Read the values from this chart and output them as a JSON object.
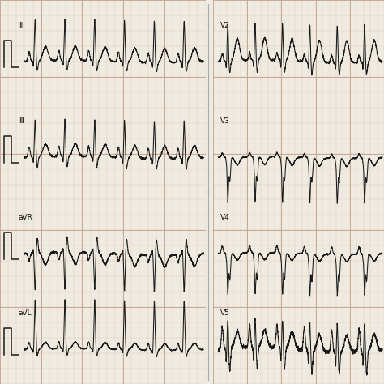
{
  "bg_color": "#f0ebe0",
  "grid_minor_color": "#d8c8b8",
  "grid_major_color": "#c8a898",
  "line_color": "#1a1a1a",
  "leads_left": [
    "II",
    "III",
    "aVR",
    "aVL"
  ],
  "leads_right": [
    "V2",
    "V3",
    "V4",
    "V5"
  ],
  "fig_width": 4.74,
  "fig_height": 4.74,
  "dpi": 100
}
